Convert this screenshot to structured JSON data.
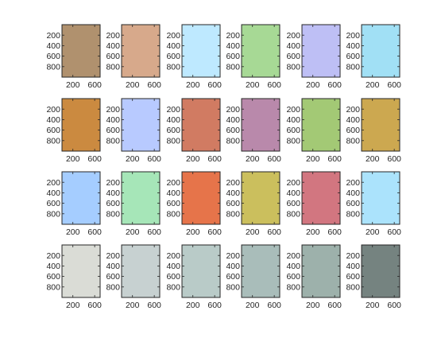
{
  "chart_data": {
    "type": "heatmap",
    "title": "",
    "xlabel": "",
    "ylabel": "",
    "grid": false,
    "rows": 4,
    "cols": 6,
    "panel": {
      "xlim": [
        0,
        700
      ],
      "ylim": [
        0,
        1000
      ],
      "y_reversed": true,
      "x_ticks": [
        200,
        600
      ],
      "x_tick_labels": [
        "200",
        "600"
      ],
      "y_ticks": [
        200,
        400,
        600,
        800
      ],
      "y_tick_labels": [
        "200",
        "400",
        "600",
        "800"
      ]
    },
    "swatches": [
      [
        "#B0916E",
        "#D7A98B",
        "#BEE9FF",
        "#A7D995",
        "#BEBFF5",
        "#A1E0F5"
      ],
      [
        "#CB8A40",
        "#B8CAFF",
        "#D17B62",
        "#B989AB",
        "#A3C975",
        "#CCA850"
      ],
      [
        "#A5CDFF",
        "#A6E6B8",
        "#E6744A",
        "#CBBF5D",
        "#D27680",
        "#ABE3FC"
      ],
      [
        "#DADCD6",
        "#C7D1D1",
        "#B9CBC8",
        "#A9BDBA",
        "#9DB1AB",
        "#758380"
      ]
    ]
  }
}
